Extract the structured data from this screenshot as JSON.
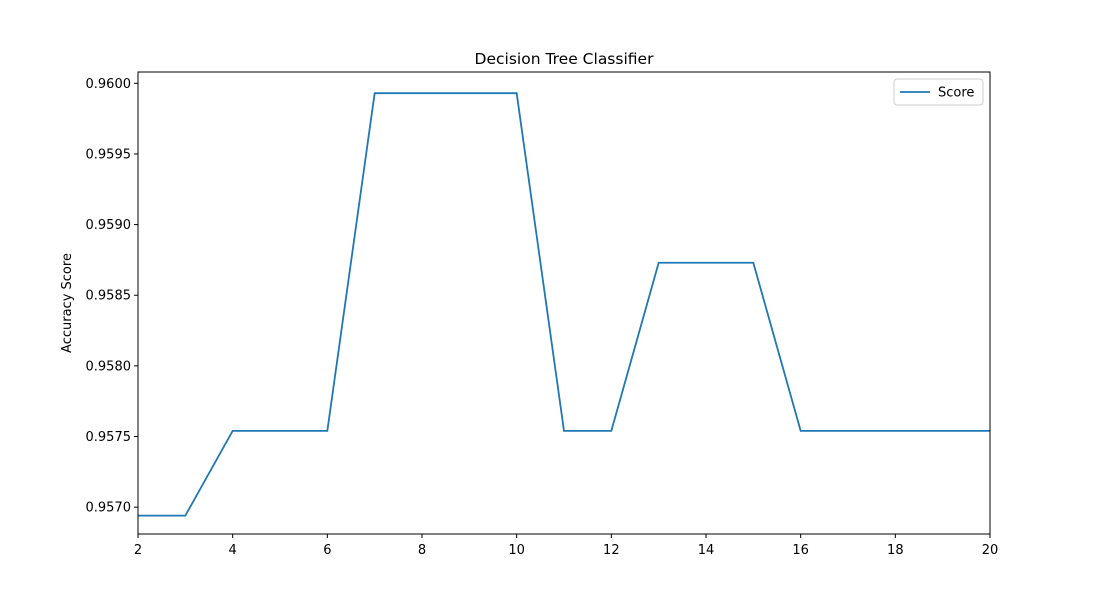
{
  "chart_data": {
    "type": "line",
    "title": "Decision Tree Classifier",
    "xlabel": "",
    "ylabel": "Accuracy Score",
    "xlim": [
      2,
      20
    ],
    "ylim": [
      0.95681,
      0.96008
    ],
    "x_ticks": [
      "2",
      "4",
      "6",
      "8",
      "10",
      "12",
      "14",
      "16",
      "18",
      "20"
    ],
    "y_ticks": [
      "0.9570",
      "0.9575",
      "0.9580",
      "0.9585",
      "0.9590",
      "0.9595",
      "0.9600"
    ],
    "grid": false,
    "legend_position": "top-right",
    "series": [
      {
        "name": "Score",
        "color": "#1f77b4",
        "x": [
          2,
          3,
          4,
          5,
          6,
          7,
          8,
          9,
          10,
          11,
          12,
          13,
          14,
          15,
          16,
          17,
          18,
          19,
          20
        ],
        "values": [
          0.95694,
          0.95694,
          0.95754,
          0.95754,
          0.95754,
          0.95993,
          0.95993,
          0.95993,
          0.95993,
          0.95754,
          0.95754,
          0.95873,
          0.95873,
          0.95873,
          0.95754,
          0.95754,
          0.95754,
          0.95754,
          0.95754
        ]
      }
    ]
  }
}
